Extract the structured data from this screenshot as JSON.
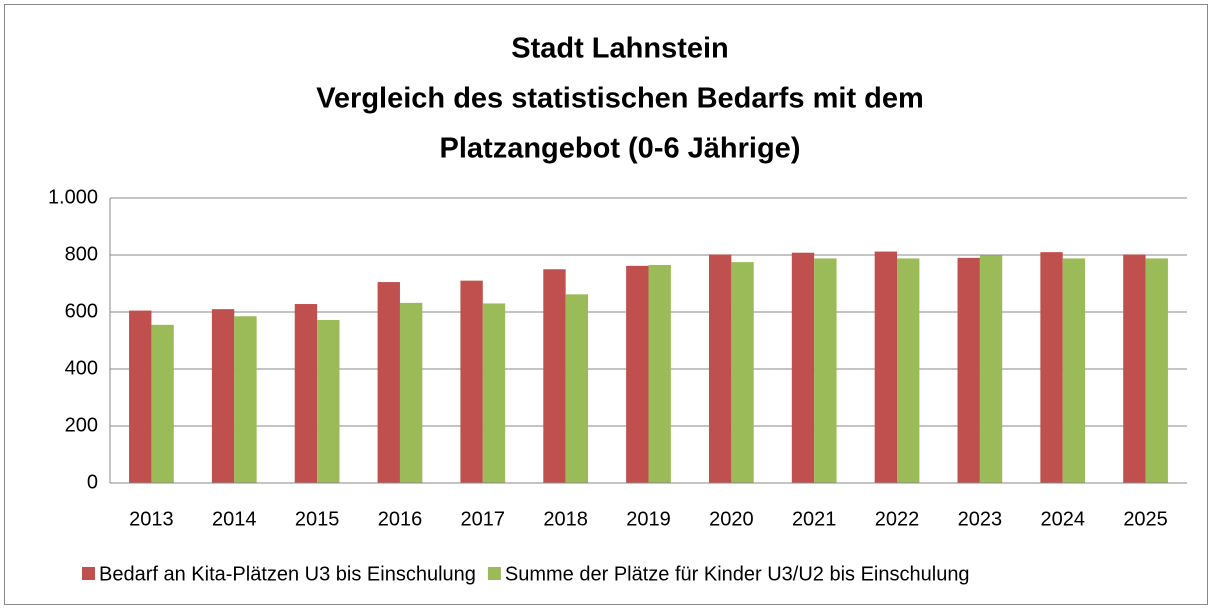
{
  "chart_data": {
    "type": "bar",
    "title": [
      "Stadt Lahnstein",
      "Vergleich des statistischen Bedarfs mit dem",
      "Platzangebot (0-6 Jährige)"
    ],
    "categories": [
      "2013",
      "2014",
      "2015",
      "2016",
      "2017",
      "2018",
      "2019",
      "2020",
      "2021",
      "2022",
      "2023",
      "2024",
      "2025"
    ],
    "series": [
      {
        "name": "Bedarf an Kita-Plätzen U3 bis Einschulung",
        "color": "#c0504d",
        "values": [
          605,
          610,
          628,
          705,
          710,
          750,
          762,
          802,
          808,
          812,
          790,
          810,
          802
        ]
      },
      {
        "name": "Summe der Plätze für Kinder U3/U2 bis Einschulung",
        "color": "#9bbb59",
        "values": [
          555,
          585,
          572,
          632,
          630,
          662,
          765,
          775,
          788,
          788,
          798,
          788,
          788
        ]
      }
    ],
    "ylim": [
      0,
      1000
    ],
    "yticks": [
      0,
      200,
      400,
      600,
      800,
      {
        "value": 1000,
        "label": "1.000"
      }
    ],
    "grid": true,
    "legend": "bottom"
  }
}
